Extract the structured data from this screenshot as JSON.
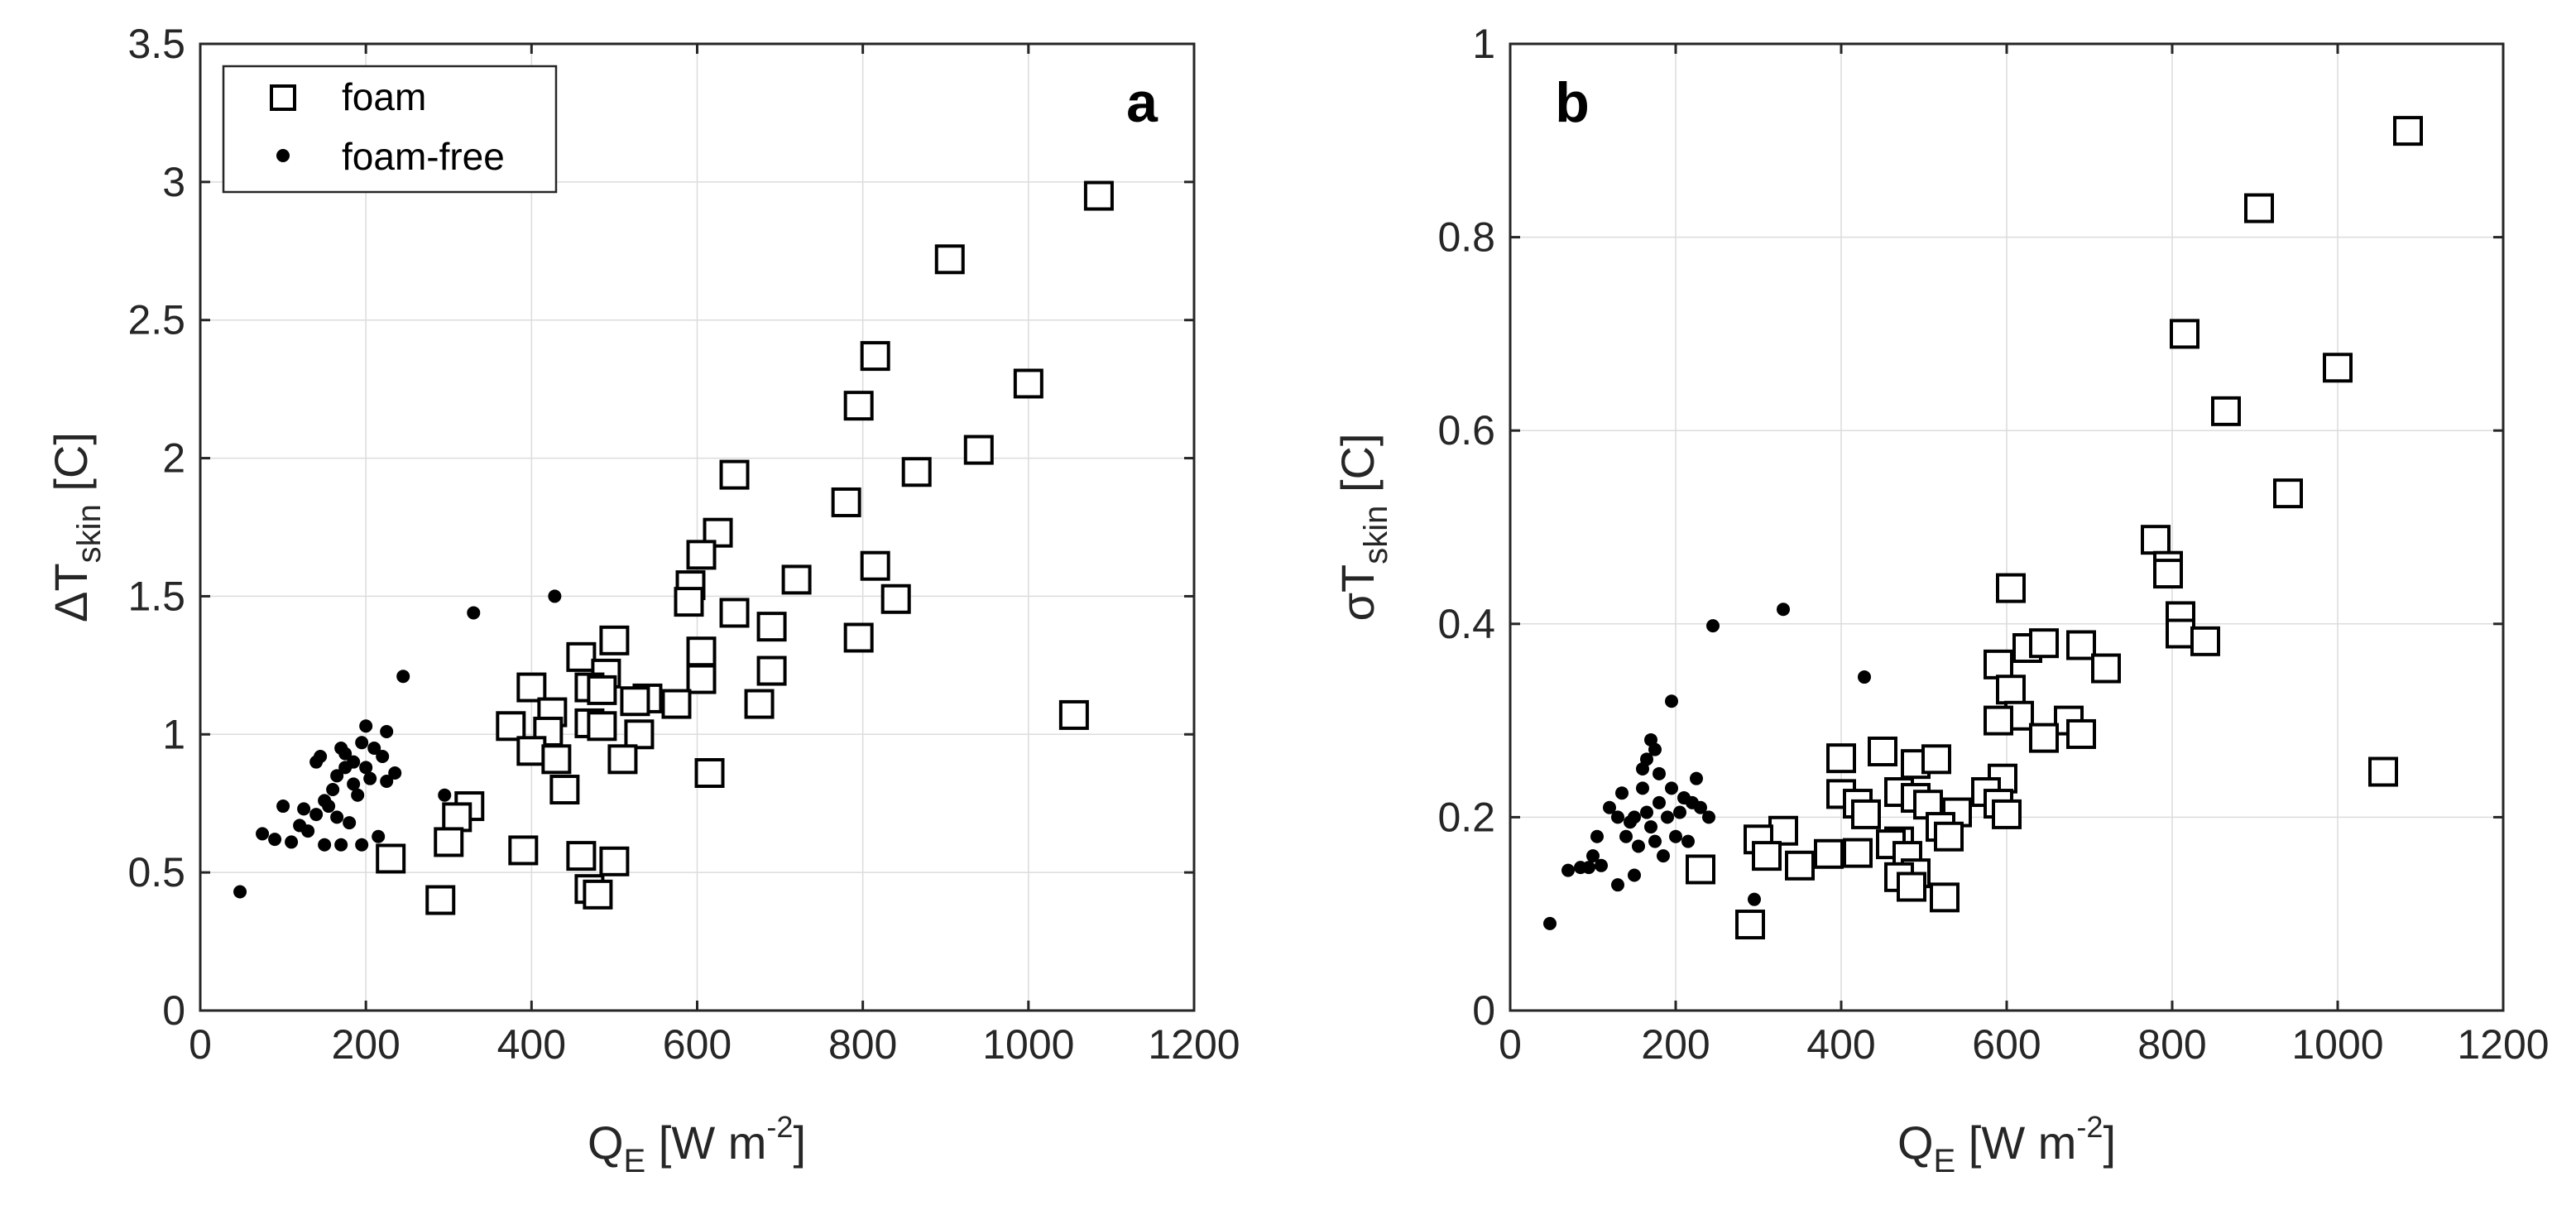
{
  "figure": {
    "legend": {
      "entries": [
        "foam",
        "foam-free"
      ]
    }
  },
  "chart_data": [
    {
      "type": "scatter",
      "panel_label": "a",
      "xlabel_main": "Q",
      "xlabel_sub": "E",
      "xlabel_unit_pre": " [W m",
      "xlabel_unit_sup": "-2",
      "xlabel_unit_post": "]",
      "ylabel_main": "ΔT",
      "ylabel_sub": "skin",
      "ylabel_unit": " [C]",
      "xlim": [
        0,
        1200
      ],
      "ylim": [
        0,
        3.5
      ],
      "xticks": [
        0,
        200,
        400,
        600,
        800,
        1000,
        1200
      ],
      "yticks": [
        0,
        0.5,
        1,
        1.5,
        2,
        2.5,
        3,
        3.5
      ],
      "ytick_labels": [
        "0",
        "0.5",
        "1",
        "1.5",
        "2",
        "2.5",
        "3",
        "3.5"
      ],
      "grid": true,
      "legend_location": "top-left",
      "series": [
        {
          "name": "foam",
          "marker": "square",
          "points": [
            [
              1085,
              2.95
            ],
            [
              905,
              2.72
            ],
            [
              815,
              2.37
            ],
            [
              1000,
              2.27
            ],
            [
              795,
              2.19
            ],
            [
              940,
              2.03
            ],
            [
              865,
              1.95
            ],
            [
              645,
              1.94
            ],
            [
              780,
              1.84
            ],
            [
              625,
              1.73
            ],
            [
              605,
              1.65
            ],
            [
              815,
              1.61
            ],
            [
              720,
              1.56
            ],
            [
              592,
              1.54
            ],
            [
              590,
              1.48
            ],
            [
              840,
              1.49
            ],
            [
              645,
              1.44
            ],
            [
              795,
              1.35
            ],
            [
              690,
              1.39
            ],
            [
              500,
              1.34
            ],
            [
              460,
              1.28
            ],
            [
              605,
              1.3
            ],
            [
              690,
              1.23
            ],
            [
              490,
              1.22
            ],
            [
              605,
              1.2
            ],
            [
              400,
              1.17
            ],
            [
              470,
              1.17
            ],
            [
              485,
              1.16
            ],
            [
              540,
              1.13
            ],
            [
              525,
              1.12
            ],
            [
              575,
              1.11
            ],
            [
              675,
              1.11
            ],
            [
              425,
              1.08
            ],
            [
              375,
              1.03
            ],
            [
              470,
              1.04
            ],
            [
              485,
              1.03
            ],
            [
              420,
              1.01
            ],
            [
              530,
              1.0
            ],
            [
              400,
              0.94
            ],
            [
              430,
              0.91
            ],
            [
              510,
              0.91
            ],
            [
              615,
              0.86
            ],
            [
              440,
              0.8
            ],
            [
              325,
              0.74
            ],
            [
              310,
              0.7
            ],
            [
              300,
              0.61
            ],
            [
              390,
              0.58
            ],
            [
              230,
              0.55
            ],
            [
              460,
              0.56
            ],
            [
              500,
              0.54
            ],
            [
              470,
              0.44
            ],
            [
              480,
              0.42
            ],
            [
              290,
              0.4
            ],
            [
              1055,
              1.07
            ]
          ]
        },
        {
          "name": "foam-free",
          "marker": "dot",
          "points": [
            [
              48,
              0.43
            ],
            [
              75,
              0.64
            ],
            [
              90,
              0.62
            ],
            [
              100,
              0.74
            ],
            [
              110,
              0.61
            ],
            [
              120,
              0.67
            ],
            [
              125,
              0.73
            ],
            [
              130,
              0.65
            ],
            [
              140,
              0.9
            ],
            [
              140,
              0.71
            ],
            [
              145,
              0.92
            ],
            [
              150,
              0.6
            ],
            [
              150,
              0.76
            ],
            [
              155,
              0.74
            ],
            [
              160,
              0.8
            ],
            [
              165,
              0.85
            ],
            [
              165,
              0.7
            ],
            [
              170,
              0.95
            ],
            [
              170,
              0.6
            ],
            [
              175,
              0.88
            ],
            [
              175,
              0.93
            ],
            [
              180,
              0.68
            ],
            [
              185,
              0.9
            ],
            [
              185,
              0.82
            ],
            [
              190,
              0.78
            ],
            [
              195,
              0.97
            ],
            [
              195,
              0.6
            ],
            [
              200,
              1.03
            ],
            [
              200,
              0.88
            ],
            [
              205,
              0.84
            ],
            [
              210,
              0.95
            ],
            [
              215,
              0.63
            ],
            [
              220,
              0.92
            ],
            [
              225,
              1.01
            ],
            [
              225,
              0.83
            ],
            [
              235,
              0.86
            ],
            [
              245,
              1.21
            ],
            [
              295,
              0.78
            ],
            [
              330,
              1.44
            ],
            [
              428,
              1.5
            ]
          ]
        }
      ]
    },
    {
      "type": "scatter",
      "panel_label": "b",
      "xlabel_main": "Q",
      "xlabel_sub": "E",
      "xlabel_unit_pre": " [W m",
      "xlabel_unit_sup": "-2",
      "xlabel_unit_post": "]",
      "ylabel_main": "σT",
      "ylabel_sub": "skin",
      "ylabel_unit": " [C]",
      "xlim": [
        0,
        1200
      ],
      "ylim": [
        0,
        1
      ],
      "xticks": [
        0,
        200,
        400,
        600,
        800,
        1000,
        1200
      ],
      "yticks": [
        0,
        0.2,
        0.4,
        0.6,
        0.8,
        1
      ],
      "ytick_labels": [
        "0",
        "0.2",
        "0.4",
        "0.6",
        "0.8",
        "1"
      ],
      "grid": true,
      "series": [
        {
          "name": "foam",
          "marker": "square",
          "points": [
            [
              1085,
              0.91
            ],
            [
              905,
              0.83
            ],
            [
              815,
              0.7
            ],
            [
              1000,
              0.665
            ],
            [
              865,
              0.62
            ],
            [
              940,
              0.535
            ],
            [
              780,
              0.487
            ],
            [
              795,
              0.46
            ],
            [
              795,
              0.452
            ],
            [
              605,
              0.437
            ],
            [
              810,
              0.408
            ],
            [
              625,
              0.375
            ],
            [
              645,
              0.38
            ],
            [
              690,
              0.378
            ],
            [
              810,
              0.39
            ],
            [
              840,
              0.382
            ],
            [
              720,
              0.354
            ],
            [
              590,
              0.358
            ],
            [
              605,
              0.332
            ],
            [
              615,
              0.305
            ],
            [
              590,
              0.3
            ],
            [
              675,
              0.3
            ],
            [
              690,
              0.286
            ],
            [
              645,
              0.282
            ],
            [
              400,
              0.261
            ],
            [
              450,
              0.268
            ],
            [
              490,
              0.255
            ],
            [
              515,
              0.26
            ],
            [
              595,
              0.24
            ],
            [
              575,
              0.226
            ],
            [
              400,
              0.224
            ],
            [
              470,
              0.226
            ],
            [
              490,
              0.22
            ],
            [
              505,
              0.213
            ],
            [
              590,
              0.214
            ],
            [
              420,
              0.214
            ],
            [
              430,
              0.203
            ],
            [
              540,
              0.205
            ],
            [
              600,
              0.203
            ],
            [
              520,
              0.19
            ],
            [
              330,
              0.186
            ],
            [
              300,
              0.177
            ],
            [
              530,
              0.18
            ],
            [
              470,
              0.175
            ],
            [
              385,
              0.162
            ],
            [
              420,
              0.163
            ],
            [
              460,
              0.172
            ],
            [
              350,
              0.15
            ],
            [
              310,
              0.16
            ],
            [
              480,
              0.16
            ],
            [
              490,
              0.142
            ],
            [
              470,
              0.138
            ],
            [
              485,
              0.128
            ],
            [
              525,
              0.117
            ],
            [
              230,
              0.146
            ],
            [
              290,
              0.089
            ],
            [
              1055,
              0.247
            ]
          ]
        },
        {
          "name": "foam-free",
          "marker": "dot",
          "points": [
            [
              48,
              0.09
            ],
            [
              70,
              0.145
            ],
            [
              85,
              0.148
            ],
            [
              95,
              0.148
            ],
            [
              100,
              0.16
            ],
            [
              105,
              0.18
            ],
            [
              110,
              0.15
            ],
            [
              120,
              0.21
            ],
            [
              130,
              0.2
            ],
            [
              130,
              0.13
            ],
            [
              135,
              0.225
            ],
            [
              140,
              0.18
            ],
            [
              145,
              0.195
            ],
            [
              150,
              0.2
            ],
            [
              150,
              0.14
            ],
            [
              155,
              0.17
            ],
            [
              160,
              0.23
            ],
            [
              160,
              0.25
            ],
            [
              165,
              0.26
            ],
            [
              165,
              0.205
            ],
            [
              170,
              0.28
            ],
            [
              170,
              0.19
            ],
            [
              175,
              0.27
            ],
            [
              175,
              0.175
            ],
            [
              180,
              0.245
            ],
            [
              180,
              0.215
            ],
            [
              185,
              0.16
            ],
            [
              190,
              0.2
            ],
            [
              195,
              0.32
            ],
            [
              195,
              0.23
            ],
            [
              200,
              0.18
            ],
            [
              205,
              0.205
            ],
            [
              210,
              0.22
            ],
            [
              215,
              0.175
            ],
            [
              220,
              0.215
            ],
            [
              225,
              0.24
            ],
            [
              230,
              0.21
            ],
            [
              240,
              0.2
            ],
            [
              245,
              0.398
            ],
            [
              295,
              0.115
            ],
            [
              330,
              0.415
            ],
            [
              428,
              0.345
            ]
          ]
        }
      ]
    }
  ]
}
